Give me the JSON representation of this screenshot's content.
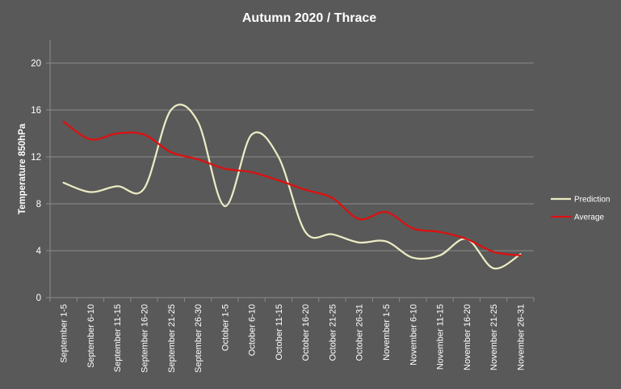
{
  "chart_data": {
    "type": "line",
    "title": "Autumn 2020 / Thrace",
    "ylabel": "Temperature 850hPa",
    "xlabel": "",
    "ylim": [
      0,
      20
    ],
    "yticks": [
      0,
      4,
      8,
      12,
      16,
      20
    ],
    "grid": true,
    "legend_position": "right",
    "categories": [
      "September 1-5",
      "September 6-10",
      "September 11-15",
      "September 16-20",
      "September 21-25",
      "September 26-30",
      "October 1-5",
      "October 6-10",
      "October 11-15",
      "October 16-20",
      "October 21-25",
      "October 26-31",
      "November 1-5",
      "November 6-10",
      "November 11-15",
      "November 16-20",
      "November 21-25",
      "November 26-31"
    ],
    "series": [
      {
        "name": "Prediction",
        "color": "#ecebc4",
        "values": [
          9.8,
          9.0,
          9.5,
          9.3,
          16.0,
          15.0,
          7.8,
          13.9,
          12.0,
          5.6,
          5.4,
          4.7,
          4.8,
          3.4,
          3.6,
          5.0,
          2.5,
          3.7
        ]
      },
      {
        "name": "Average",
        "color": "#dd1010",
        "values": [
          15.0,
          13.5,
          14.0,
          13.9,
          12.4,
          11.8,
          11.0,
          10.7,
          10.0,
          9.2,
          8.5,
          6.7,
          7.3,
          5.9,
          5.6,
          5.0,
          3.9,
          3.6
        ]
      }
    ]
  }
}
